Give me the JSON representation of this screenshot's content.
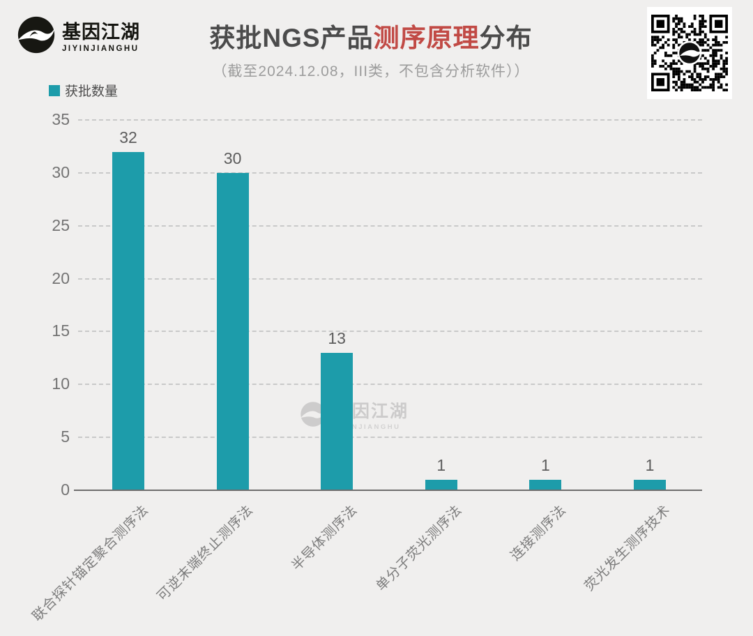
{
  "brand": {
    "name": "基因江湖",
    "romanized": "JIYINJIANGHU"
  },
  "header": {
    "title_prefix": "获批NGS产品",
    "title_highlight": "测序原理",
    "title_suffix": "分布",
    "subtitle": "（截至2024.12.08，III类，不包含分析软件））"
  },
  "legend": {
    "label": "获批数量"
  },
  "watermark": {
    "name": "基因江湖",
    "romanized": "JIYINJIANGHU"
  },
  "qr_code": {
    "description": "qr-code-with-brand-logo-center"
  },
  "chart_data": {
    "type": "bar",
    "title": "获批NGS产品测序原理分布",
    "subtitle": "（截至2024.12.08，III类，不包含分析软件））",
    "series_name": "获批数量",
    "categories": [
      "联合探针锚定聚合测序法",
      "可逆末端终止测序法",
      "半导体测序法",
      "单分子荧光测序法",
      "连接测序法",
      "荧光发生测序技术"
    ],
    "values": [
      32,
      30,
      13,
      1,
      1,
      1
    ],
    "xlabel": "",
    "ylabel": "",
    "ylim": [
      0,
      35
    ],
    "yticks": [
      0,
      5,
      10,
      15,
      20,
      25,
      30,
      35
    ],
    "grid": "horizontal-dashed",
    "legend_position": "top-left",
    "data_labels": true,
    "x_tick_rotation_deg": 45
  },
  "colors": {
    "bar": "#1d9caa",
    "title_highlight": "#c14a45",
    "title_text": "#4b4b4b",
    "subtitle_text": "#9c9c9c",
    "background": "#f0efee",
    "axis_text": "#737373",
    "gridline": "#c9c9c9"
  }
}
